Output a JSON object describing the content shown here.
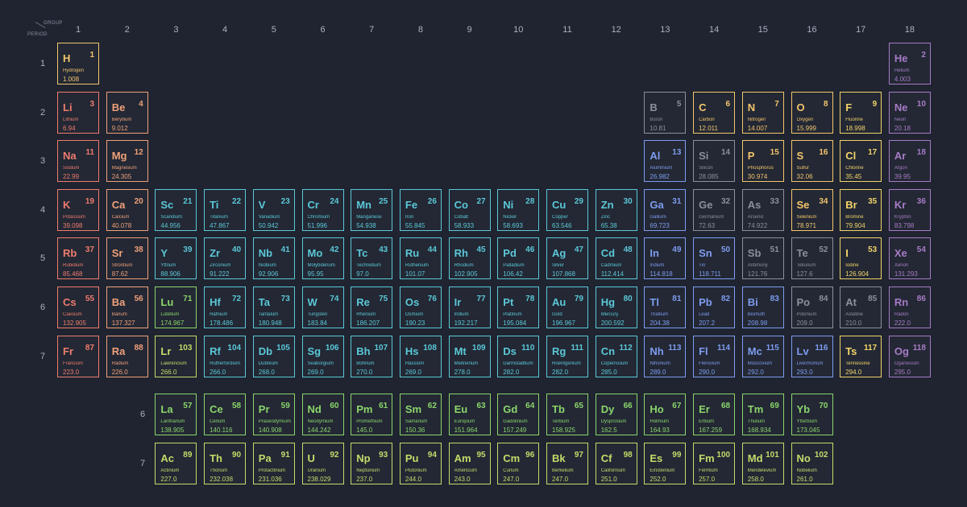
{
  "header": {
    "group_label": "GROUP",
    "period_label": "PERIOD"
  },
  "groups": [
    "1",
    "2",
    "3",
    "4",
    "5",
    "6",
    "7",
    "8",
    "9",
    "10",
    "11",
    "12",
    "13",
    "14",
    "15",
    "16",
    "17",
    "18"
  ],
  "periods": [
    "1",
    "2",
    "3",
    "4",
    "5",
    "6",
    "7"
  ],
  "series_rows": [
    "6",
    "7"
  ],
  "colors": {
    "alkali": "#ef7b6e",
    "alkaline": "#f0a07a",
    "transition": "#5bc8d8",
    "post": "#7e9cf0",
    "metalloid": "#8a909c",
    "nonmetal": "#f4c56c",
    "halogen": "#f2d36a",
    "noble": "#a77bc6",
    "lanthanide": "#8bd56b",
    "actinide": "#c3dc6a"
  },
  "elements": [
    {
      "s": "H",
      "n": "1",
      "name": "Hydrogen",
      "m": "1.008",
      "g": 1,
      "p": 1,
      "c": "nonmetal"
    },
    {
      "s": "He",
      "n": "2",
      "name": "Helium",
      "m": "4.003",
      "g": 18,
      "p": 1,
      "c": "noble"
    },
    {
      "s": "Li",
      "n": "3",
      "name": "Lithium",
      "m": "6.94",
      "g": 1,
      "p": 2,
      "c": "alkali"
    },
    {
      "s": "Be",
      "n": "4",
      "name": "Beryllium",
      "m": "9.012",
      "g": 2,
      "p": 2,
      "c": "alkaline"
    },
    {
      "s": "B",
      "n": "5",
      "name": "Boron",
      "m": "10.81",
      "g": 13,
      "p": 2,
      "c": "metalloid"
    },
    {
      "s": "C",
      "n": "6",
      "name": "Carbon",
      "m": "12.011",
      "g": 14,
      "p": 2,
      "c": "nonmetal"
    },
    {
      "s": "N",
      "n": "7",
      "name": "Nitrogen",
      "m": "14.007",
      "g": 15,
      "p": 2,
      "c": "nonmetal"
    },
    {
      "s": "O",
      "n": "8",
      "name": "Oxygen",
      "m": "15.999",
      "g": 16,
      "p": 2,
      "c": "nonmetal"
    },
    {
      "s": "F",
      "n": "9",
      "name": "Fluorine",
      "m": "18.998",
      "g": 17,
      "p": 2,
      "c": "halogen"
    },
    {
      "s": "Ne",
      "n": "10",
      "name": "Neon",
      "m": "20.18",
      "g": 18,
      "p": 2,
      "c": "noble"
    },
    {
      "s": "Na",
      "n": "11",
      "name": "Sodium",
      "m": "22.99",
      "g": 1,
      "p": 3,
      "c": "alkali"
    },
    {
      "s": "Mg",
      "n": "12",
      "name": "Magnesium",
      "m": "24.305",
      "g": 2,
      "p": 3,
      "c": "alkaline"
    },
    {
      "s": "Al",
      "n": "13",
      "name": "Aluminium",
      "m": "26.982",
      "g": 13,
      "p": 3,
      "c": "post"
    },
    {
      "s": "Si",
      "n": "14",
      "name": "Silicon",
      "m": "28.085",
      "g": 14,
      "p": 3,
      "c": "metalloid"
    },
    {
      "s": "P",
      "n": "15",
      "name": "Phosphorus",
      "m": "30.974",
      "g": 15,
      "p": 3,
      "c": "nonmetal"
    },
    {
      "s": "S",
      "n": "16",
      "name": "Sulfur",
      "m": "32.06",
      "g": 16,
      "p": 3,
      "c": "nonmetal"
    },
    {
      "s": "Cl",
      "n": "17",
      "name": "Chlorine",
      "m": "35.45",
      "g": 17,
      "p": 3,
      "c": "halogen"
    },
    {
      "s": "Ar",
      "n": "18",
      "name": "Argon",
      "m": "39.95",
      "g": 18,
      "p": 3,
      "c": "noble"
    },
    {
      "s": "K",
      "n": "19",
      "name": "Potassium",
      "m": "39.098",
      "g": 1,
      "p": 4,
      "c": "alkali"
    },
    {
      "s": "Ca",
      "n": "20",
      "name": "Calcium",
      "m": "40.078",
      "g": 2,
      "p": 4,
      "c": "alkaline"
    },
    {
      "s": "Sc",
      "n": "21",
      "name": "Scandium",
      "m": "44.956",
      "g": 3,
      "p": 4,
      "c": "transition"
    },
    {
      "s": "Ti",
      "n": "22",
      "name": "Titanium",
      "m": "47.867",
      "g": 4,
      "p": 4,
      "c": "transition"
    },
    {
      "s": "V",
      "n": "23",
      "name": "Vanadium",
      "m": "50.942",
      "g": 5,
      "p": 4,
      "c": "transition"
    },
    {
      "s": "Cr",
      "n": "24",
      "name": "Chromium",
      "m": "51.996",
      "g": 6,
      "p": 4,
      "c": "transition"
    },
    {
      "s": "Mn",
      "n": "25",
      "name": "Manganese",
      "m": "54.938",
      "g": 7,
      "p": 4,
      "c": "transition"
    },
    {
      "s": "Fe",
      "n": "26",
      "name": "Iron",
      "m": "55.845",
      "g": 8,
      "p": 4,
      "c": "transition"
    },
    {
      "s": "Co",
      "n": "27",
      "name": "Cobalt",
      "m": "58.933",
      "g": 9,
      "p": 4,
      "c": "transition"
    },
    {
      "s": "Ni",
      "n": "28",
      "name": "Nickel",
      "m": "58.693",
      "g": 10,
      "p": 4,
      "c": "transition"
    },
    {
      "s": "Cu",
      "n": "29",
      "name": "Copper",
      "m": "63.546",
      "g": 11,
      "p": 4,
      "c": "transition"
    },
    {
      "s": "Zn",
      "n": "30",
      "name": "Zinc",
      "m": "65.38",
      "g": 12,
      "p": 4,
      "c": "transition"
    },
    {
      "s": "Ga",
      "n": "31",
      "name": "Gallium",
      "m": "69.723",
      "g": 13,
      "p": 4,
      "c": "post"
    },
    {
      "s": "Ge",
      "n": "32",
      "name": "Germanium",
      "m": "72.63",
      "g": 14,
      "p": 4,
      "c": "metalloid"
    },
    {
      "s": "As",
      "n": "33",
      "name": "Arsenic",
      "m": "74.922",
      "g": 15,
      "p": 4,
      "c": "metalloid"
    },
    {
      "s": "Se",
      "n": "34",
      "name": "Selenium",
      "m": "78.971",
      "g": 16,
      "p": 4,
      "c": "nonmetal"
    },
    {
      "s": "Br",
      "n": "35",
      "name": "Bromine",
      "m": "79.904",
      "g": 17,
      "p": 4,
      "c": "halogen"
    },
    {
      "s": "Kr",
      "n": "36",
      "name": "Krypton",
      "m": "83.798",
      "g": 18,
      "p": 4,
      "c": "noble"
    },
    {
      "s": "Rb",
      "n": "37",
      "name": "Rubidium",
      "m": "85.468",
      "g": 1,
      "p": 5,
      "c": "alkali"
    },
    {
      "s": "Sr",
      "n": "38",
      "name": "Strontium",
      "m": "87.62",
      "g": 2,
      "p": 5,
      "c": "alkaline"
    },
    {
      "s": "Y",
      "n": "39",
      "name": "Yttrium",
      "m": "88.906",
      "g": 3,
      "p": 5,
      "c": "transition"
    },
    {
      "s": "Zr",
      "n": "40",
      "name": "Zirconium",
      "m": "91.222",
      "g": 4,
      "p": 5,
      "c": "transition"
    },
    {
      "s": "Nb",
      "n": "41",
      "name": "Niobium",
      "m": "92.906",
      "g": 5,
      "p": 5,
      "c": "transition"
    },
    {
      "s": "Mo",
      "n": "42",
      "name": "Molybdenum",
      "m": "95.95",
      "g": 6,
      "p": 5,
      "c": "transition"
    },
    {
      "s": "Tc",
      "n": "43",
      "name": "Technetium",
      "m": "97.0",
      "g": 7,
      "p": 5,
      "c": "transition"
    },
    {
      "s": "Ru",
      "n": "44",
      "name": "Ruthenium",
      "m": "101.07",
      "g": 8,
      "p": 5,
      "c": "transition"
    },
    {
      "s": "Rh",
      "n": "45",
      "name": "Rhodium",
      "m": "102.905",
      "g": 9,
      "p": 5,
      "c": "transition"
    },
    {
      "s": "Pd",
      "n": "46",
      "name": "Palladium",
      "m": "106.42",
      "g": 10,
      "p": 5,
      "c": "transition"
    },
    {
      "s": "Ag",
      "n": "47",
      "name": "Silver",
      "m": "107.868",
      "g": 11,
      "p": 5,
      "c": "transition"
    },
    {
      "s": "Cd",
      "n": "48",
      "name": "Cadmium",
      "m": "112.414",
      "g": 12,
      "p": 5,
      "c": "transition"
    },
    {
      "s": "In",
      "n": "49",
      "name": "Indium",
      "m": "114.818",
      "g": 13,
      "p": 5,
      "c": "post"
    },
    {
      "s": "Sn",
      "n": "50",
      "name": "Tin",
      "m": "118.711",
      "g": 14,
      "p": 5,
      "c": "post"
    },
    {
      "s": "Sb",
      "n": "51",
      "name": "Antimony",
      "m": "121.76",
      "g": 15,
      "p": 5,
      "c": "metalloid"
    },
    {
      "s": "Te",
      "n": "52",
      "name": "Tellurium",
      "m": "127.6",
      "g": 16,
      "p": 5,
      "c": "metalloid"
    },
    {
      "s": "I",
      "n": "53",
      "name": "Iodine",
      "m": "126.904",
      "g": 17,
      "p": 5,
      "c": "halogen"
    },
    {
      "s": "Xe",
      "n": "54",
      "name": "Xenon",
      "m": "131.293",
      "g": 18,
      "p": 5,
      "c": "noble"
    },
    {
      "s": "Cs",
      "n": "55",
      "name": "Caesium",
      "m": "132.905",
      "g": 1,
      "p": 6,
      "c": "alkali"
    },
    {
      "s": "Ba",
      "n": "56",
      "name": "Barium",
      "m": "137.327",
      "g": 2,
      "p": 6,
      "c": "alkaline"
    },
    {
      "s": "Lu",
      "n": "71",
      "name": "Lutetium",
      "m": "174.967",
      "g": 3,
      "p": 6,
      "c": "lanthanide"
    },
    {
      "s": "Hf",
      "n": "72",
      "name": "Hafnium",
      "m": "178.486",
      "g": 4,
      "p": 6,
      "c": "transition"
    },
    {
      "s": "Ta",
      "n": "73",
      "name": "Tantalum",
      "m": "180.948",
      "g": 5,
      "p": 6,
      "c": "transition"
    },
    {
      "s": "W",
      "n": "74",
      "name": "Tungsten",
      "m": "183.84",
      "g": 6,
      "p": 6,
      "c": "transition"
    },
    {
      "s": "Re",
      "n": "75",
      "name": "Rhenium",
      "m": "186.207",
      "g": 7,
      "p": 6,
      "c": "transition"
    },
    {
      "s": "Os",
      "n": "76",
      "name": "Osmium",
      "m": "190.23",
      "g": 8,
      "p": 6,
      "c": "transition"
    },
    {
      "s": "Ir",
      "n": "77",
      "name": "Iridium",
      "m": "192.217",
      "g": 9,
      "p": 6,
      "c": "transition"
    },
    {
      "s": "Pt",
      "n": "78",
      "name": "Platinum",
      "m": "195.084",
      "g": 10,
      "p": 6,
      "c": "transition"
    },
    {
      "s": "Au",
      "n": "79",
      "name": "Gold",
      "m": "196.967",
      "g": 11,
      "p": 6,
      "c": "transition"
    },
    {
      "s": "Hg",
      "n": "80",
      "name": "Mercury",
      "m": "200.592",
      "g": 12,
      "p": 6,
      "c": "transition"
    },
    {
      "s": "Tl",
      "n": "81",
      "name": "Thallium",
      "m": "204.38",
      "g": 13,
      "p": 6,
      "c": "post"
    },
    {
      "s": "Pb",
      "n": "82",
      "name": "Lead",
      "m": "207.2",
      "g": 14,
      "p": 6,
      "c": "post"
    },
    {
      "s": "Bi",
      "n": "83",
      "name": "Bismuth",
      "m": "208.98",
      "g": 15,
      "p": 6,
      "c": "post"
    },
    {
      "s": "Po",
      "n": "84",
      "name": "Polonium",
      "m": "209.0",
      "g": 16,
      "p": 6,
      "c": "metalloid"
    },
    {
      "s": "At",
      "n": "85",
      "name": "Astatine",
      "m": "210.0",
      "g": 17,
      "p": 6,
      "c": "metalloid"
    },
    {
      "s": "Rn",
      "n": "86",
      "name": "Radon",
      "m": "222.0",
      "g": 18,
      "p": 6,
      "c": "noble"
    },
    {
      "s": "Fr",
      "n": "87",
      "name": "Francium",
      "m": "223.0",
      "g": 1,
      "p": 7,
      "c": "alkali"
    },
    {
      "s": "Ra",
      "n": "88",
      "name": "Radium",
      "m": "226.0",
      "g": 2,
      "p": 7,
      "c": "alkaline"
    },
    {
      "s": "Lr",
      "n": "103",
      "name": "Lawrencium",
      "m": "266.0",
      "g": 3,
      "p": 7,
      "c": "actinide"
    },
    {
      "s": "Rf",
      "n": "104",
      "name": "Rutherfordium",
      "m": "266.0",
      "g": 4,
      "p": 7,
      "c": "transition"
    },
    {
      "s": "Db",
      "n": "105",
      "name": "Dubnium",
      "m": "268.0",
      "g": 5,
      "p": 7,
      "c": "transition"
    },
    {
      "s": "Sg",
      "n": "106",
      "name": "Seaborgium",
      "m": "269.0",
      "g": 6,
      "p": 7,
      "c": "transition"
    },
    {
      "s": "Bh",
      "n": "107",
      "name": "Bohrium",
      "m": "270.0",
      "g": 7,
      "p": 7,
      "c": "transition"
    },
    {
      "s": "Hs",
      "n": "108",
      "name": "Hassium",
      "m": "269.0",
      "g": 8,
      "p": 7,
      "c": "transition"
    },
    {
      "s": "Mt",
      "n": "109",
      "name": "Meitnerium",
      "m": "278.0",
      "g": 9,
      "p": 7,
      "c": "transition"
    },
    {
      "s": "Ds",
      "n": "110",
      "name": "Darmstadtium",
      "m": "282.0",
      "g": 10,
      "p": 7,
      "c": "transition"
    },
    {
      "s": "Rg",
      "n": "111",
      "name": "Roentgenium",
      "m": "282.0",
      "g": 11,
      "p": 7,
      "c": "transition"
    },
    {
      "s": "Cn",
      "n": "112",
      "name": "Copernicium",
      "m": "285.0",
      "g": 12,
      "p": 7,
      "c": "transition"
    },
    {
      "s": "Nh",
      "n": "113",
      "name": "Nihonium",
      "m": "289.0",
      "g": 13,
      "p": 7,
      "c": "post"
    },
    {
      "s": "Fl",
      "n": "114",
      "name": "Flerovium",
      "m": "290.0",
      "g": 14,
      "p": 7,
      "c": "post"
    },
    {
      "s": "Mc",
      "n": "115",
      "name": "Moscovium",
      "m": "292.0",
      "g": 15,
      "p": 7,
      "c": "post"
    },
    {
      "s": "Lv",
      "n": "116",
      "name": "Livermorium",
      "m": "293.0",
      "g": 16,
      "p": 7,
      "c": "post"
    },
    {
      "s": "Ts",
      "n": "117",
      "name": "Tennessine",
      "m": "294.0",
      "g": 17,
      "p": 7,
      "c": "halogen"
    },
    {
      "s": "Og",
      "n": "118",
      "name": "Oganesson",
      "m": "295.0",
      "g": 18,
      "p": 7,
      "c": "noble"
    },
    {
      "s": "La",
      "n": "57",
      "name": "Lanthanum",
      "m": "138.905",
      "g": 3,
      "p": 9,
      "c": "lanthanide"
    },
    {
      "s": "Ce",
      "n": "58",
      "name": "Cerium",
      "m": "140.116",
      "g": 4,
      "p": 9,
      "c": "lanthanide"
    },
    {
      "s": "Pr",
      "n": "59",
      "name": "Praseodymium",
      "m": "140.908",
      "g": 5,
      "p": 9,
      "c": "lanthanide"
    },
    {
      "s": "Nd",
      "n": "60",
      "name": "Neodymium",
      "m": "144.242",
      "g": 6,
      "p": 9,
      "c": "lanthanide"
    },
    {
      "s": "Pm",
      "n": "61",
      "name": "Promethium",
      "m": "145.0",
      "g": 7,
      "p": 9,
      "c": "lanthanide"
    },
    {
      "s": "Sm",
      "n": "62",
      "name": "Samarium",
      "m": "150.36",
      "g": 8,
      "p": 9,
      "c": "lanthanide"
    },
    {
      "s": "Eu",
      "n": "63",
      "name": "Europium",
      "m": "151.964",
      "g": 9,
      "p": 9,
      "c": "lanthanide"
    },
    {
      "s": "Gd",
      "n": "64",
      "name": "Gadolinium",
      "m": "157.249",
      "g": 10,
      "p": 9,
      "c": "lanthanide"
    },
    {
      "s": "Tb",
      "n": "65",
      "name": "Terbium",
      "m": "158.925",
      "g": 11,
      "p": 9,
      "c": "lanthanide"
    },
    {
      "s": "Dy",
      "n": "66",
      "name": "Dysprosium",
      "m": "162.5",
      "g": 12,
      "p": 9,
      "c": "lanthanide"
    },
    {
      "s": "Ho",
      "n": "67",
      "name": "Holmium",
      "m": "164.93",
      "g": 13,
      "p": 9,
      "c": "lanthanide"
    },
    {
      "s": "Er",
      "n": "68",
      "name": "Erbium",
      "m": "167.259",
      "g": 14,
      "p": 9,
      "c": "lanthanide"
    },
    {
      "s": "Tm",
      "n": "69",
      "name": "Thulium",
      "m": "168.934",
      "g": 15,
      "p": 9,
      "c": "lanthanide"
    },
    {
      "s": "Yb",
      "n": "70",
      "name": "Ytterbium",
      "m": "173.045",
      "g": 16,
      "p": 9,
      "c": "lanthanide"
    },
    {
      "s": "Ac",
      "n": "89",
      "name": "Actinium",
      "m": "227.0",
      "g": 3,
      "p": 10,
      "c": "actinide"
    },
    {
      "s": "Th",
      "n": "90",
      "name": "Thorium",
      "m": "232.038",
      "g": 4,
      "p": 10,
      "c": "actinide"
    },
    {
      "s": "Pa",
      "n": "91",
      "name": "Protactinium",
      "m": "231.036",
      "g": 5,
      "p": 10,
      "c": "actinide"
    },
    {
      "s": "U",
      "n": "92",
      "name": "Uranium",
      "m": "238.029",
      "g": 6,
      "p": 10,
      "c": "actinide"
    },
    {
      "s": "Np",
      "n": "93",
      "name": "Neptunium",
      "m": "237.0",
      "g": 7,
      "p": 10,
      "c": "actinide"
    },
    {
      "s": "Pu",
      "n": "94",
      "name": "Plutonium",
      "m": "244.0",
      "g": 8,
      "p": 10,
      "c": "actinide"
    },
    {
      "s": "Am",
      "n": "95",
      "name": "Americium",
      "m": "243.0",
      "g": 9,
      "p": 10,
      "c": "actinide"
    },
    {
      "s": "Cm",
      "n": "96",
      "name": "Curium",
      "m": "247.0",
      "g": 10,
      "p": 10,
      "c": "actinide"
    },
    {
      "s": "Bk",
      "n": "97",
      "name": "Berkelium",
      "m": "247.0",
      "g": 11,
      "p": 10,
      "c": "actinide"
    },
    {
      "s": "Cf",
      "n": "98",
      "name": "Californium",
      "m": "251.0",
      "g": 12,
      "p": 10,
      "c": "actinide"
    },
    {
      "s": "Es",
      "n": "99",
      "name": "Einsteinium",
      "m": "252.0",
      "g": 13,
      "p": 10,
      "c": "actinide"
    },
    {
      "s": "Fm",
      "n": "100",
      "name": "Fermium",
      "m": "257.0",
      "g": 14,
      "p": 10,
      "c": "actinide"
    },
    {
      "s": "Md",
      "n": "101",
      "name": "Mendelevium",
      "m": "258.0",
      "g": 15,
      "p": 10,
      "c": "actinide"
    },
    {
      "s": "No",
      "n": "102",
      "name": "Nobelium",
      "m": "261.0",
      "g": 16,
      "p": 10,
      "c": "actinide"
    }
  ]
}
